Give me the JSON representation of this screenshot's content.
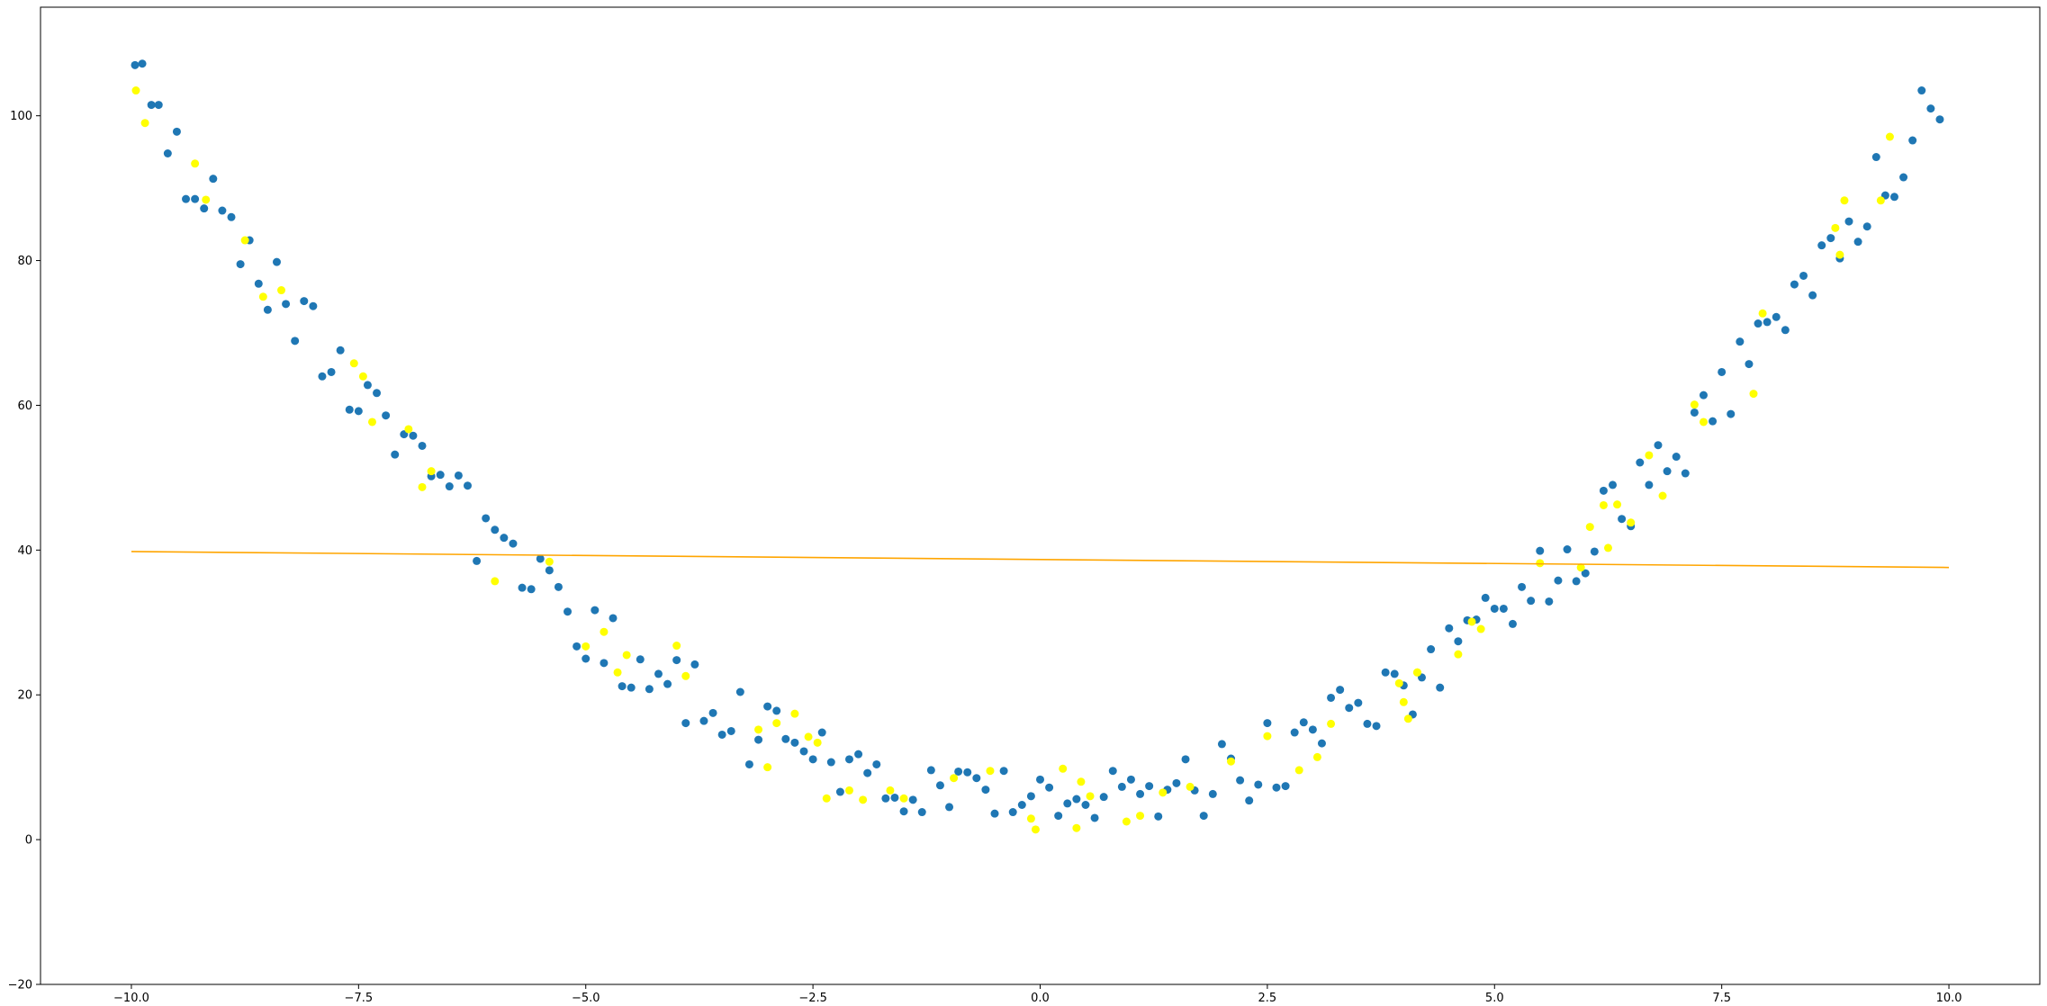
{
  "chart_data": {
    "type": "scatter",
    "title": "",
    "xlabel": "",
    "ylabel": "",
    "xlim": [
      -11.0,
      11.0
    ],
    "ylim": [
      -20,
      115
    ],
    "x_ticks": [
      -10.0,
      -7.5,
      -5.0,
      -2.5,
      0.0,
      2.5,
      5.0,
      7.5,
      10.0
    ],
    "x_tick_labels": [
      "−10.0",
      "−7.5",
      "−5.0",
      "−2.5",
      "0.0",
      "2.5",
      "5.0",
      "7.5",
      "10.0"
    ],
    "y_ticks": [
      -20,
      0,
      20,
      40,
      60,
      80,
      100
    ],
    "y_tick_labels": [
      "−20",
      "0",
      "20",
      "40",
      "60",
      "80",
      "100"
    ],
    "grid": false,
    "legend": "none",
    "colors": {
      "blue": "#1f77b4",
      "yellow": "#ffff00",
      "line": "#ffa500"
    },
    "series": [
      {
        "kind": "points",
        "color": "#1f77b4",
        "x": [
          -9.96,
          -9.88,
          -9.78,
          -9.7,
          -9.6,
          -9.5,
          -9.4,
          -9.3,
          -9.2,
          -9.1,
          -9.0,
          -8.9,
          -8.8,
          -8.7,
          -8.6,
          -8.5,
          -8.4,
          -8.3,
          -8.2,
          -8.1,
          -8.0,
          -7.9,
          -7.8,
          -7.7,
          -7.6,
          -7.5,
          -7.4,
          -7.3,
          -7.2,
          -7.1,
          -7.0,
          -6.9,
          -6.8,
          -6.7,
          -6.6,
          -6.5,
          -6.4,
          -6.3,
          -6.2,
          -6.1,
          -6.0,
          -5.9,
          -5.8,
          -5.7,
          -5.6,
          -5.5,
          -5.4,
          -5.3,
          -5.2,
          -5.1,
          -5.0,
          -4.9,
          -4.8,
          -4.7,
          -4.6,
          -4.5,
          -4.4,
          -4.3,
          -4.2,
          -4.1,
          -4.0,
          -3.9,
          -3.8,
          -3.7,
          -3.6,
          -3.5,
          -3.4,
          -3.3,
          -3.2,
          -3.1,
          -3.0,
          -2.9,
          -2.8,
          -2.7,
          -2.6,
          -2.5,
          -2.4,
          -2.3,
          -2.2,
          -2.1,
          -2.0,
          -1.9,
          -1.8,
          -1.7,
          -1.6,
          -1.5,
          -1.4,
          -1.3,
          -1.2,
          -1.1,
          -1.0,
          -0.9,
          -0.8,
          -0.7,
          -0.6,
          -0.5,
          -0.4,
          -0.3,
          -0.2,
          -0.1,
          0.0,
          0.1,
          0.2,
          0.3,
          0.4,
          0.5,
          0.6,
          0.7,
          0.8,
          0.9,
          1.0,
          1.1,
          1.2,
          1.3,
          1.4,
          1.5,
          1.6,
          1.7,
          1.8,
          1.9,
          2.0,
          2.1,
          2.2,
          2.3,
          2.4,
          2.5,
          2.6,
          2.7,
          2.8,
          2.9,
          3.0,
          3.1,
          3.2,
          3.3,
          3.4,
          3.5,
          3.6,
          3.7,
          3.8,
          3.9,
          4.0,
          4.1,
          4.2,
          4.3,
          4.4,
          4.5,
          4.6,
          4.7,
          4.8,
          4.9,
          5.0,
          5.1,
          5.2,
          5.3,
          5.4,
          5.5,
          5.6,
          5.7,
          5.8,
          5.9,
          6.0,
          6.1,
          6.2,
          6.3,
          6.4,
          6.5,
          6.6,
          6.7,
          6.8,
          6.9,
          7.0,
          7.1,
          7.2,
          7.3,
          7.4,
          7.5,
          7.6,
          7.7,
          7.8,
          7.9,
          8.0,
          8.1,
          8.2,
          8.3,
          8.4,
          8.5,
          8.6,
          8.7,
          8.8,
          8.9,
          9.0,
          9.1,
          9.2,
          9.3,
          9.4,
          9.5,
          9.6,
          9.7,
          9.8,
          9.9
        ],
        "y": [
          107.0,
          107.2,
          101.5,
          101.5,
          94.8,
          97.8,
          88.5,
          88.5,
          87.2,
          91.3,
          86.9,
          86.0,
          79.5,
          82.8,
          76.8,
          73.2,
          79.8,
          74.0,
          68.9,
          74.4,
          73.7,
          64.0,
          64.6,
          67.6,
          59.4,
          59.2,
          62.8,
          61.7,
          58.6,
          53.2,
          56.0,
          55.8,
          54.4,
          50.2,
          50.4,
          48.8,
          50.3,
          48.9,
          38.5,
          44.4,
          42.8,
          41.7,
          40.9,
          34.8,
          34.6,
          38.8,
          37.2,
          34.9,
          31.5,
          26.7,
          25.0,
          31.7,
          24.4,
          30.6,
          21.2,
          21.0,
          24.9,
          20.8,
          22.9,
          21.5,
          24.8,
          16.1,
          24.2,
          16.4,
          17.5,
          14.5,
          15.0,
          20.4,
          10.4,
          13.8,
          18.4,
          17.8,
          13.9,
          13.4,
          12.2,
          11.1,
          14.8,
          10.7,
          6.6,
          11.1,
          11.8,
          9.2,
          10.4,
          5.7,
          5.8,
          3.9,
          5.5,
          3.8,
          9.6,
          7.5,
          4.5,
          9.4,
          9.3,
          8.5,
          6.9,
          3.6,
          9.5,
          3.8,
          4.8,
          6.0,
          8.3,
          7.2,
          3.3,
          5.0,
          5.6,
          4.8,
          3.0,
          5.9,
          9.5,
          7.3,
          8.3,
          6.3,
          7.4,
          3.2,
          6.9,
          7.8,
          11.1,
          6.8,
          3.3,
          6.3,
          13.2,
          11.2,
          8.2,
          5.4,
          7.6,
          16.1,
          7.2,
          7.4,
          14.8,
          16.2,
          15.2,
          13.3,
          19.6,
          20.7,
          18.2,
          18.9,
          16.0,
          15.7,
          23.1,
          22.9,
          21.3,
          17.3,
          22.4,
          26.3,
          21.0,
          29.2,
          27.4,
          30.3,
          30.4,
          33.4,
          31.9,
          31.9,
          29.8,
          34.9,
          33.0,
          39.9,
          32.9,
          35.8,
          40.1,
          35.7,
          36.8,
          39.8,
          48.2,
          49.0,
          44.3,
          43.3,
          52.1,
          49.0,
          54.5,
          50.9,
          52.9,
          50.6,
          59.0,
          61.4,
          57.8,
          64.6,
          58.8,
          68.8,
          65.7,
          71.3,
          71.5,
          72.2,
          70.4,
          76.7,
          77.9,
          75.2,
          82.1,
          83.1,
          80.3,
          85.4,
          82.6,
          84.7,
          94.3,
          89.0,
          88.8,
          91.5,
          96.6,
          103.5,
          101.0,
          99.5
        ]
      },
      {
        "kind": "points",
        "color": "#ffff00",
        "x": [
          -9.95,
          -9.85,
          -9.3,
          -9.18,
          -8.75,
          -8.55,
          -8.35,
          -7.55,
          -7.45,
          -7.35,
          -6.95,
          -6.8,
          -6.7,
          -6.0,
          -5.4,
          -5.0,
          -4.8,
          -4.65,
          -4.55,
          -4.0,
          -3.9,
          -3.1,
          -3.0,
          -2.9,
          -2.7,
          -2.55,
          -2.45,
          -2.35,
          -2.1,
          -1.95,
          -1.65,
          -1.5,
          -0.95,
          -0.55,
          -0.1,
          -0.05,
          0.25,
          0.4,
          0.45,
          0.55,
          0.95,
          1.1,
          1.35,
          1.65,
          2.1,
          2.5,
          2.85,
          3.05,
          3.2,
          3.95,
          4.0,
          4.05,
          4.15,
          4.15,
          4.6,
          4.75,
          4.85,
          5.5,
          5.95,
          6.05,
          6.2,
          6.25,
          6.35,
          6.5,
          6.7,
          6.85,
          7.2,
          7.3,
          7.85,
          7.95,
          8.75,
          8.8,
          8.85,
          9.25,
          9.35
        ],
        "y": [
          103.5,
          99.0,
          93.4,
          88.4,
          82.8,
          75.0,
          75.9,
          65.8,
          64.0,
          57.7,
          56.7,
          48.7,
          50.9,
          35.7,
          38.4,
          26.7,
          28.7,
          23.1,
          25.5,
          26.8,
          22.6,
          15.2,
          10.0,
          16.1,
          17.4,
          14.2,
          13.4,
          5.7,
          6.8,
          5.5,
          6.8,
          5.7,
          8.5,
          9.5,
          2.9,
          1.4,
          9.8,
          1.6,
          8.0,
          6.0,
          2.5,
          3.3,
          6.5,
          7.3,
          10.8,
          14.3,
          9.6,
          11.4,
          16.0,
          21.6,
          19.0,
          16.7,
          23.1,
          23.1,
          25.6,
          30.1,
          29.1,
          38.2,
          37.6,
          43.2,
          46.2,
          40.3,
          46.3,
          43.8,
          53.1,
          47.5,
          60.1,
          57.7,
          61.6,
          72.7,
          84.5,
          80.8,
          88.3,
          88.3,
          97.1
        ]
      },
      {
        "kind": "line",
        "color": "#ffa500",
        "x": [
          -10.0,
          10.0
        ],
        "y": [
          39.8,
          37.6
        ]
      }
    ]
  }
}
